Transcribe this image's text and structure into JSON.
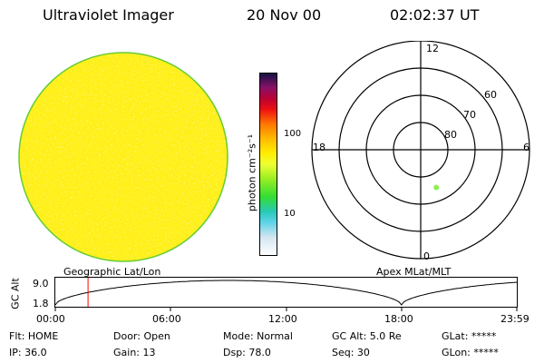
{
  "header": {
    "instrument": "Ultraviolet Imager",
    "date": "20 Nov 00",
    "time": "02:02:37 UT"
  },
  "colorbar": {
    "unit_label": "photon cm⁻²s⁻¹",
    "ticks": [
      "100",
      "10"
    ]
  },
  "polar_plot": {
    "mlt_labels": {
      "top": "12",
      "right": "6",
      "bottom": "0",
      "left": "18"
    },
    "lat_labels": [
      "60",
      "70",
      "80"
    ],
    "point": {
      "mlat": 75,
      "mlt": 1.5,
      "color": "#90ee50"
    }
  },
  "orbit_plot": {
    "left_title": "Geographic Lat/Lon",
    "right_title": "Apex MLat/MLT",
    "y_label": "GC Alt",
    "y_ticks": [
      "9.0",
      "1.8"
    ],
    "x_ticks": [
      "00:00",
      "06:00",
      "12:00",
      "18:00",
      "23:59"
    ],
    "current_time_hours": 1.7,
    "marker_color": "#ff0000"
  },
  "status": {
    "flt": "Flt: HOME",
    "door": "Door: Open",
    "mode": "Mode: Normal",
    "gc_alt": "GC Alt: 5.0 Re",
    "glat": "GLat: *****",
    "ip": "IP: 36.0",
    "gain": "Gain: 13",
    "dsp": "Dsp:   78.0",
    "seq": "Seq: 30",
    "glon": "GLon: *****"
  },
  "colors": {
    "disk": "#ffef1a",
    "disk_edge": "#66cc33"
  }
}
